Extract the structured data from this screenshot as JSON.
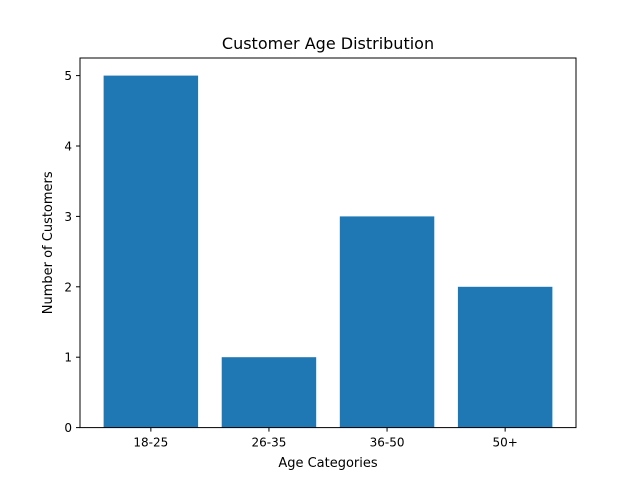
{
  "chart_data": {
    "type": "bar",
    "title": "Customer Age Distribution",
    "xlabel": "Age Categories",
    "ylabel": "Number of Customers",
    "categories": [
      "18-25",
      "26-35",
      "36-50",
      "50+"
    ],
    "values": [
      5,
      1,
      3,
      2
    ],
    "ylim": [
      0,
      5.25
    ],
    "yticks": [
      0,
      1,
      2,
      3,
      4,
      5
    ],
    "grid": false,
    "bar_color": "#1f77b4"
  }
}
